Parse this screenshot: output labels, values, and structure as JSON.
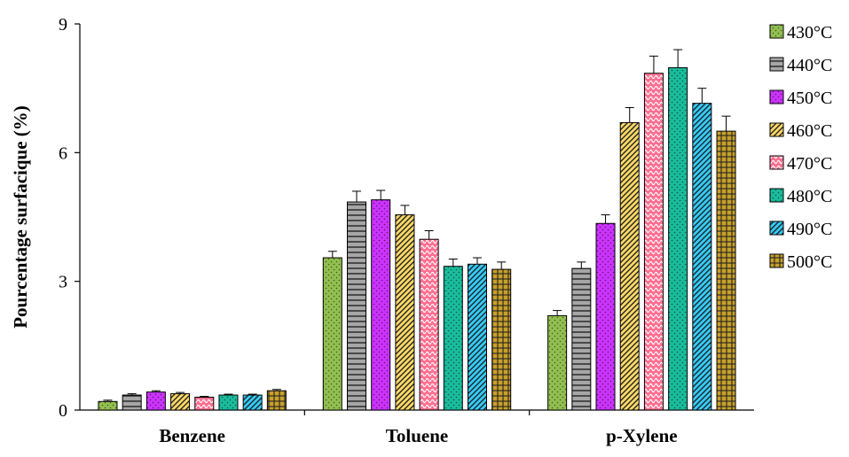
{
  "chart_data": {
    "type": "bar",
    "title": "",
    "xlabel": "",
    "ylabel": "Pourcentage surfacique (%)",
    "ylim": [
      0,
      9
    ],
    "yticks": [
      "0",
      "3",
      "6",
      "9"
    ],
    "ytick_values": [
      0,
      3,
      6,
      9
    ],
    "categories": [
      "Benzene",
      "Toluene",
      "p-Xylene"
    ],
    "error_bars": true,
    "grid": false,
    "legend_position": "right",
    "series": [
      {
        "name": "430°C",
        "values": [
          0.2,
          3.55,
          2.2
        ],
        "errors": [
          0.03,
          0.15,
          0.12
        ],
        "color": "#92c050",
        "pattern": "dots"
      },
      {
        "name": "440°C",
        "values": [
          0.35,
          4.85,
          3.3
        ],
        "errors": [
          0.03,
          0.25,
          0.15
        ],
        "color": "#a6a6a6",
        "pattern": "hlines"
      },
      {
        "name": "450°C",
        "values": [
          0.42,
          4.9,
          4.35
        ],
        "errors": [
          0.03,
          0.22,
          0.2
        ],
        "color": "#cc33ff",
        "pattern": "dots"
      },
      {
        "name": "460°C",
        "values": [
          0.38,
          4.55,
          6.7
        ],
        "errors": [
          0.03,
          0.22,
          0.35
        ],
        "color": "#ffd966",
        "pattern": "diag"
      },
      {
        "name": "470°C",
        "values": [
          0.3,
          3.98,
          7.85
        ],
        "errors": [
          0.02,
          0.2,
          0.4
        ],
        "color": "#ff6f91",
        "pattern": "waves"
      },
      {
        "name": "480°C",
        "values": [
          0.35,
          3.35,
          7.98
        ],
        "errors": [
          0.02,
          0.17,
          0.42
        ],
        "color": "#1abc9c",
        "pattern": "dots"
      },
      {
        "name": "490°C",
        "values": [
          0.35,
          3.4,
          7.15
        ],
        "errors": [
          0.02,
          0.15,
          0.35
        ],
        "color": "#33ccff",
        "pattern": "diag"
      },
      {
        "name": "500°C",
        "values": [
          0.45,
          3.28,
          6.5
        ],
        "errors": [
          0.03,
          0.17,
          0.35
        ],
        "color": "#c8a02a",
        "pattern": "grid"
      }
    ]
  }
}
